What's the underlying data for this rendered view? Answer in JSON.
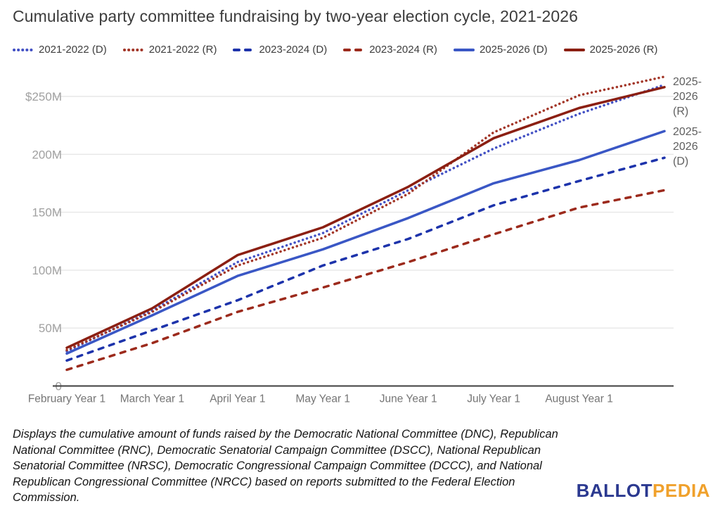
{
  "title": "Cumulative party committee fundraising by two-year election cycle, 2021-2026",
  "legend": [
    {
      "label": "2021-2022 (D)",
      "style": "dotted",
      "color": "#4250c4"
    },
    {
      "label": "2021-2022 (R)",
      "style": "dotted",
      "color": "#a23527"
    },
    {
      "label": "2023-2024 (D)",
      "style": "dashed",
      "color": "#1d33ab"
    },
    {
      "label": "2023-2024 (R)",
      "style": "dashed",
      "color": "#9c2a1c"
    },
    {
      "label": "2025-2026 (D)",
      "style": "solid",
      "color": "#3a57c5"
    },
    {
      "label": "2025-2026 (R)",
      "style": "solid",
      "color": "#8b1f12"
    }
  ],
  "chart_data": {
    "type": "line",
    "title": "Cumulative party committee fundraising by two-year election cycle, 2021-2026",
    "xlabel": "",
    "ylabel": "",
    "unit": "millions of USD",
    "ylim": [
      0,
      275
    ],
    "grid": true,
    "legend_position": "top",
    "x_tick_labels": [
      "February Year 1",
      "March Year 1",
      "April Year 1",
      "May Year 1",
      "June Year 1",
      "July Year 1",
      "August Year 1"
    ],
    "points_per_series": 8,
    "y_ticks": [
      {
        "value": 250,
        "label": "$250M"
      },
      {
        "value": 200,
        "label": "200M"
      },
      {
        "value": 150,
        "label": "150M"
      },
      {
        "value": 100,
        "label": "100M"
      },
      {
        "value": 50,
        "label": "50M"
      },
      {
        "value": 0,
        "label": "0"
      }
    ],
    "series": [
      {
        "name": "2021-2022 (D)",
        "style": "dotted",
        "color": "#4250c4",
        "values": [
          30,
          65,
          107,
          132,
          169,
          205,
          235,
          260
        ]
      },
      {
        "name": "2021-2022 (R)",
        "style": "dotted",
        "color": "#a23527",
        "values": [
          31,
          64,
          104,
          128,
          166,
          219,
          251,
          267
        ]
      },
      {
        "name": "2023-2024 (D)",
        "style": "dashed",
        "color": "#1d33ab",
        "values": [
          22,
          48,
          74,
          104,
          127,
          156,
          177,
          197
        ]
      },
      {
        "name": "2023-2024 (R)",
        "style": "dashed",
        "color": "#9c2a1c",
        "values": [
          14,
          37,
          64,
          85,
          107,
          131,
          154,
          169
        ]
      },
      {
        "name": "2025-2026 (D)",
        "style": "solid",
        "color": "#3a57c5",
        "values": [
          28,
          61,
          95,
          118,
          145,
          175,
          195,
          220
        ]
      },
      {
        "name": "2025-2026 (R)",
        "style": "solid",
        "color": "#8b1f12",
        "values": [
          33,
          67,
          113,
          137,
          172,
          214,
          240,
          258
        ]
      }
    ],
    "annotations": [
      {
        "text": "2025-2026 (R)",
        "series": "2025-2026 (R)"
      },
      {
        "text": "2025-2026 (D)",
        "series": "2025-2026 (D)"
      }
    ]
  },
  "footnote": "Displays the cumulative amount of funds raised by the Democratic National Committee (DNC), Republican National Committee (RNC), Democratic Senatorial Campaign Committee (DSCC), National Republican Senatorial Committee (NRSC), Democratic Congressional Campaign Committee (DCCC), and National Republican Congressional Committee (NRCC) based on reports submitted to the Federal Election Commission.",
  "logo": {
    "part1": "BALLOT",
    "part2": "PEDIA",
    "color1": "#2b3990",
    "color2": "#f0a12c"
  },
  "colors": {
    "gridline": "#e7e7e7",
    "axis": "#3f3f3f",
    "y_tick_text": "#a0a0a0",
    "x_tick_text": "#757575",
    "title_text": "#3c3c3c",
    "annotation_text": "#5f5f5f"
  }
}
